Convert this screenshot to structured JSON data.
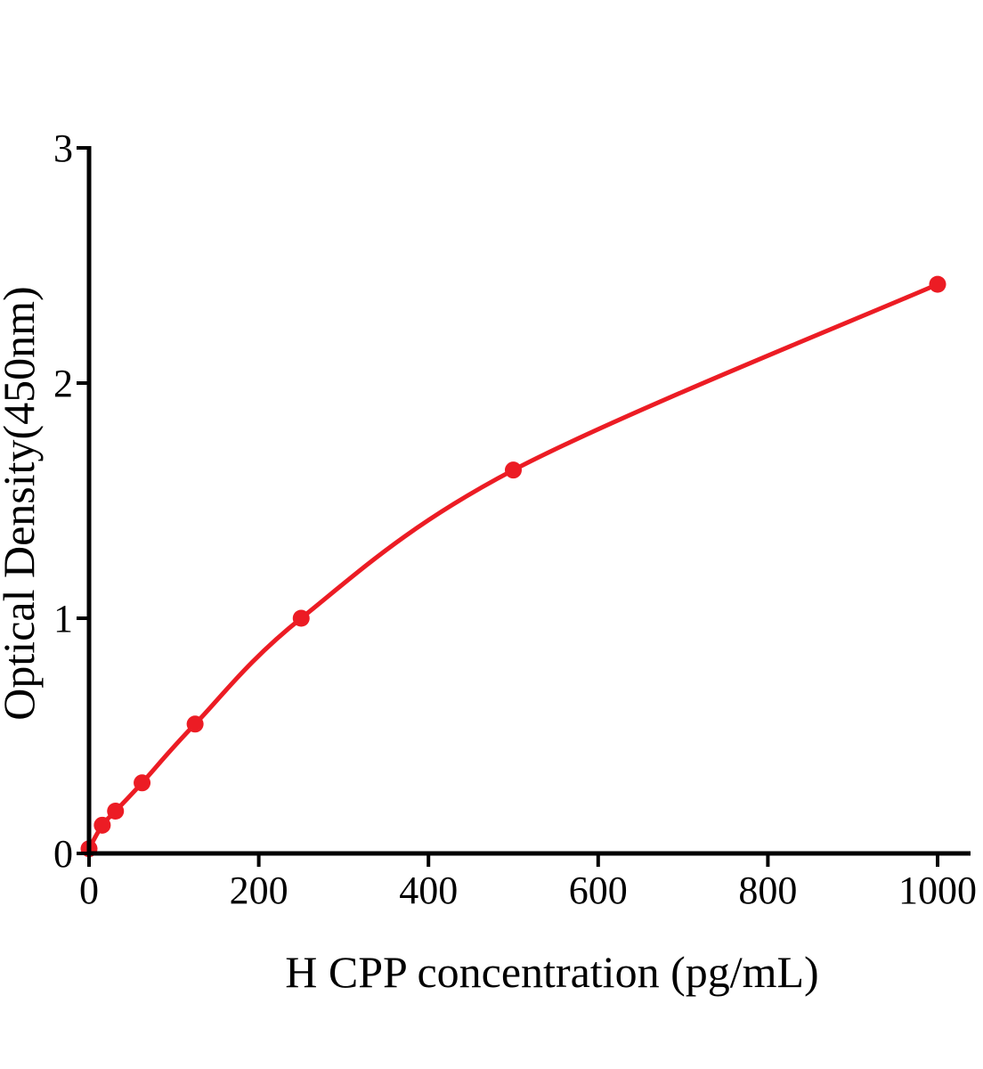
{
  "figure": {
    "type_label": "ELISA standard curve",
    "xlabel": "H CPP concentration (pg/mL)",
    "ylabel": "Optical Density(450nm)"
  },
  "chart_data": {
    "type": "line",
    "subtype": "scatter-with-smooth-curve",
    "title": "",
    "xlabel": "H CPP concentration (pg/mL)",
    "ylabel": "Optical Density(450nm)",
    "x": [
      0,
      15.6,
      31.2,
      62.5,
      125,
      250,
      500,
      1000
    ],
    "y": [
      0.02,
      0.12,
      0.18,
      0.3,
      0.55,
      1.0,
      1.63,
      2.42
    ],
    "xticks": [
      0,
      200,
      400,
      600,
      800,
      1000
    ],
    "yticks": [
      0,
      1,
      2,
      3
    ],
    "xlim": [
      0,
      1040
    ],
    "ylim": [
      0,
      3
    ],
    "grid": false,
    "legend": null,
    "line_color": "#ec1c24",
    "marker_color": "#ec1c24",
    "axis_color": "#000000",
    "marker": "circle"
  }
}
